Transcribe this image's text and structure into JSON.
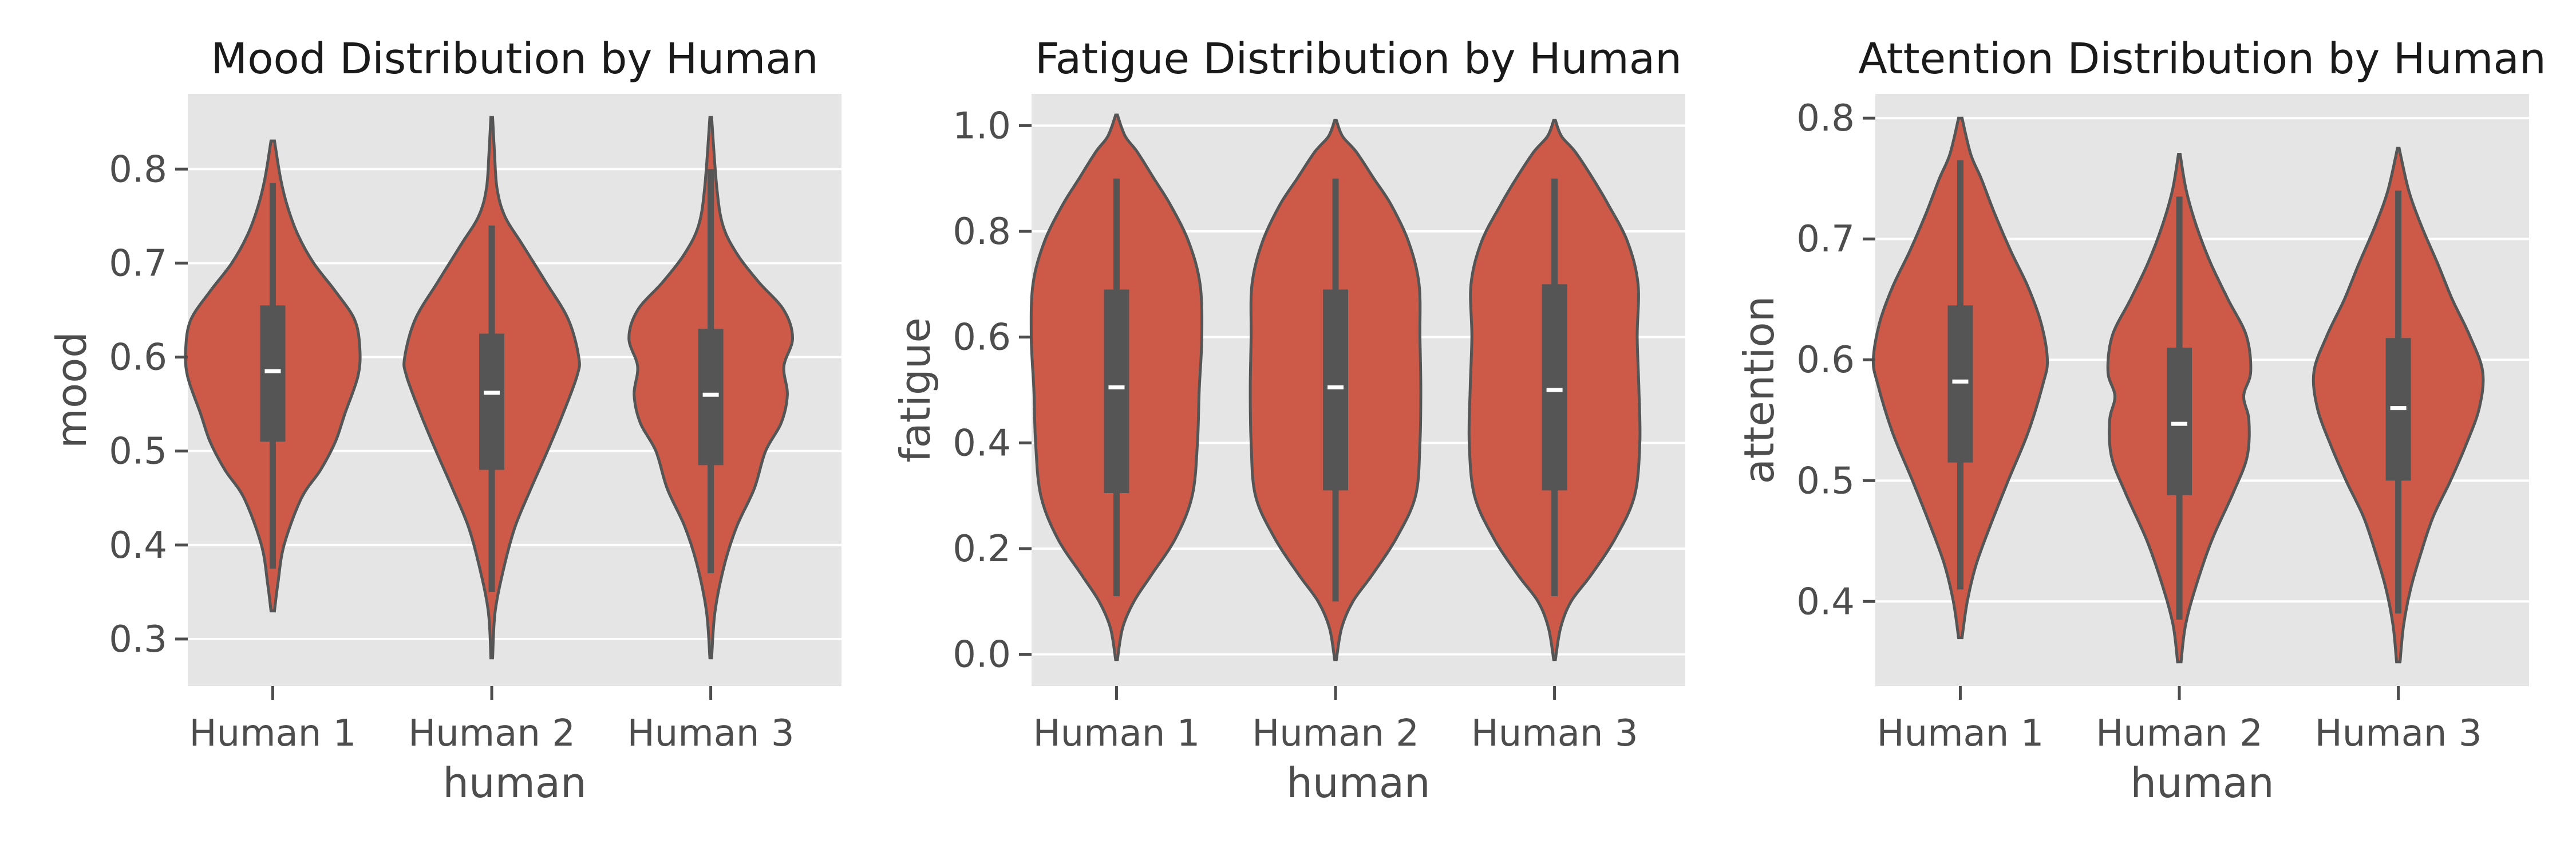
{
  "figure": {
    "background": "#ffffff",
    "panel_background": "#e5e5e5",
    "grid_color": "#ffffff",
    "violin_fill": "#cd5a48",
    "violin_stroke": "#555555",
    "box_color": "#555555",
    "median_color": "#ffffff"
  },
  "chart_data": [
    {
      "type": "violin",
      "title": "Mood Distribution by Human",
      "xlabel": "human",
      "ylabel": "mood",
      "ylim": [
        0.25,
        0.88
      ],
      "yticks": [
        0.3,
        0.4,
        0.5,
        0.6,
        0.7,
        0.8
      ],
      "ytick_labels": [
        "0.3",
        "0.4",
        "0.5",
        "0.6",
        "0.7",
        "0.8"
      ],
      "grid": true,
      "categories": [
        "Human 1",
        "Human 2",
        "Human 3"
      ],
      "groups": [
        {
          "min": 0.33,
          "max": 0.83,
          "whisker_low": 0.375,
          "q1": 0.51,
          "median": 0.585,
          "q3": 0.655,
          "whisker_high": 0.785,
          "density": [
            [
              0.33,
              0.02
            ],
            [
              0.36,
              0.06
            ],
            [
              0.4,
              0.13
            ],
            [
              0.45,
              0.33
            ],
            [
              0.48,
              0.55
            ],
            [
              0.51,
              0.72
            ],
            [
              0.54,
              0.83
            ],
            [
              0.58,
              0.98
            ],
            [
              0.61,
              1.0
            ],
            [
              0.64,
              0.94
            ],
            [
              0.67,
              0.72
            ],
            [
              0.7,
              0.47
            ],
            [
              0.73,
              0.29
            ],
            [
              0.76,
              0.17
            ],
            [
              0.79,
              0.09
            ],
            [
              0.83,
              0.02
            ]
          ]
        },
        {
          "min": 0.28,
          "max": 0.855,
          "whisker_low": 0.35,
          "q1": 0.48,
          "median": 0.562,
          "q3": 0.625,
          "whisker_high": 0.74,
          "density": [
            [
              0.28,
              0.01
            ],
            [
              0.33,
              0.04
            ],
            [
              0.38,
              0.15
            ],
            [
              0.42,
              0.27
            ],
            [
              0.46,
              0.45
            ],
            [
              0.5,
              0.64
            ],
            [
              0.54,
              0.82
            ],
            [
              0.58,
              0.98
            ],
            [
              0.6,
              1.0
            ],
            [
              0.64,
              0.88
            ],
            [
              0.68,
              0.62
            ],
            [
              0.72,
              0.35
            ],
            [
              0.75,
              0.15
            ],
            [
              0.78,
              0.06
            ],
            [
              0.82,
              0.03
            ],
            [
              0.855,
              0.01
            ]
          ]
        },
        {
          "min": 0.28,
          "max": 0.855,
          "whisker_low": 0.37,
          "q1": 0.485,
          "median": 0.56,
          "q3": 0.63,
          "whisker_high": 0.8,
          "density": [
            [
              0.28,
              0.01
            ],
            [
              0.33,
              0.05
            ],
            [
              0.38,
              0.16
            ],
            [
              0.42,
              0.3
            ],
            [
              0.46,
              0.5
            ],
            [
              0.5,
              0.63
            ],
            [
              0.53,
              0.81
            ],
            [
              0.56,
              0.88
            ],
            [
              0.59,
              0.84
            ],
            [
              0.62,
              0.94
            ],
            [
              0.65,
              0.84
            ],
            [
              0.68,
              0.55
            ],
            [
              0.71,
              0.3
            ],
            [
              0.74,
              0.14
            ],
            [
              0.78,
              0.07
            ],
            [
              0.855,
              0.01
            ]
          ]
        }
      ]
    },
    {
      "type": "violin",
      "title": "Fatigue Distribution by Human",
      "xlabel": "human",
      "ylabel": "fatigue",
      "ylim": [
        -0.06,
        1.06
      ],
      "yticks": [
        0.0,
        0.2,
        0.4,
        0.6,
        0.8,
        1.0
      ],
      "ytick_labels": [
        "0.0",
        "0.2",
        "0.4",
        "0.6",
        "0.8",
        "1.0"
      ],
      "grid": true,
      "categories": [
        "Human 1",
        "Human 2",
        "Human 3"
      ],
      "groups": [
        {
          "min": -0.01,
          "max": 1.02,
          "whisker_low": 0.11,
          "q1": 0.305,
          "median": 0.505,
          "q3": 0.69,
          "whisker_high": 0.9,
          "density": [
            [
              -0.01,
              0.01
            ],
            [
              0.05,
              0.07
            ],
            [
              0.1,
              0.2
            ],
            [
              0.15,
              0.4
            ],
            [
              0.22,
              0.68
            ],
            [
              0.3,
              0.87
            ],
            [
              0.4,
              0.93
            ],
            [
              0.5,
              0.95
            ],
            [
              0.6,
              0.98
            ],
            [
              0.7,
              0.96
            ],
            [
              0.78,
              0.83
            ],
            [
              0.85,
              0.62
            ],
            [
              0.9,
              0.43
            ],
            [
              0.95,
              0.24
            ],
            [
              0.98,
              0.1
            ],
            [
              1.02,
              0.01
            ]
          ]
        },
        {
          "min": -0.01,
          "max": 1.01,
          "whisker_low": 0.1,
          "q1": 0.31,
          "median": 0.505,
          "q3": 0.69,
          "whisker_high": 0.9,
          "density": [
            [
              -0.01,
              0.01
            ],
            [
              0.05,
              0.07
            ],
            [
              0.1,
              0.2
            ],
            [
              0.15,
              0.42
            ],
            [
              0.22,
              0.7
            ],
            [
              0.3,
              0.92
            ],
            [
              0.4,
              0.97
            ],
            [
              0.5,
              0.98
            ],
            [
              0.6,
              0.97
            ],
            [
              0.7,
              0.96
            ],
            [
              0.78,
              0.84
            ],
            [
              0.85,
              0.64
            ],
            [
              0.9,
              0.44
            ],
            [
              0.95,
              0.24
            ],
            [
              0.98,
              0.08
            ],
            [
              1.01,
              0.01
            ]
          ]
        },
        {
          "min": -0.01,
          "max": 1.01,
          "whisker_low": 0.11,
          "q1": 0.31,
          "median": 0.5,
          "q3": 0.7,
          "whisker_high": 0.9,
          "density": [
            [
              -0.01,
              0.01
            ],
            [
              0.05,
              0.07
            ],
            [
              0.1,
              0.19
            ],
            [
              0.15,
              0.42
            ],
            [
              0.22,
              0.7
            ],
            [
              0.3,
              0.92
            ],
            [
              0.4,
              0.98
            ],
            [
              0.5,
              0.97
            ],
            [
              0.6,
              0.95
            ],
            [
              0.7,
              0.96
            ],
            [
              0.78,
              0.84
            ],
            [
              0.85,
              0.62
            ],
            [
              0.9,
              0.44
            ],
            [
              0.95,
              0.24
            ],
            [
              0.98,
              0.08
            ],
            [
              1.01,
              0.01
            ]
          ]
        }
      ]
    },
    {
      "type": "violin",
      "title": "Attention Distribution by Human",
      "xlabel": "human",
      "ylabel": "attention",
      "ylim": [
        0.33,
        0.82
      ],
      "yticks": [
        0.4,
        0.5,
        0.6,
        0.7,
        0.8
      ],
      "ytick_labels": [
        "0.4",
        "0.5",
        "0.6",
        "0.7",
        "0.8"
      ],
      "grid": true,
      "categories": [
        "Human 1",
        "Human 2",
        "Human 3"
      ],
      "groups": [
        {
          "min": 0.37,
          "max": 0.8,
          "whisker_low": 0.41,
          "q1": 0.515,
          "median": 0.582,
          "q3": 0.645,
          "whisker_high": 0.765,
          "density": [
            [
              0.37,
              0.02
            ],
            [
              0.4,
              0.08
            ],
            [
              0.43,
              0.18
            ],
            [
              0.46,
              0.33
            ],
            [
              0.5,
              0.55
            ],
            [
              0.54,
              0.78
            ],
            [
              0.58,
              0.95
            ],
            [
              0.6,
              1.0
            ],
            [
              0.63,
              0.93
            ],
            [
              0.66,
              0.78
            ],
            [
              0.69,
              0.58
            ],
            [
              0.72,
              0.4
            ],
            [
              0.75,
              0.24
            ],
            [
              0.77,
              0.12
            ],
            [
              0.8,
              0.02
            ]
          ]
        },
        {
          "min": 0.35,
          "max": 0.77,
          "whisker_low": 0.385,
          "q1": 0.488,
          "median": 0.547,
          "q3": 0.61,
          "whisker_high": 0.735,
          "density": [
            [
              0.35,
              0.02
            ],
            [
              0.38,
              0.07
            ],
            [
              0.41,
              0.18
            ],
            [
              0.45,
              0.37
            ],
            [
              0.49,
              0.62
            ],
            [
              0.52,
              0.78
            ],
            [
              0.55,
              0.8
            ],
            [
              0.57,
              0.74
            ],
            [
              0.59,
              0.82
            ],
            [
              0.62,
              0.77
            ],
            [
              0.65,
              0.56
            ],
            [
              0.68,
              0.36
            ],
            [
              0.71,
              0.2
            ],
            [
              0.74,
              0.08
            ],
            [
              0.77,
              0.01
            ]
          ]
        },
        {
          "min": 0.35,
          "max": 0.775,
          "whisker_low": 0.39,
          "q1": 0.5,
          "median": 0.56,
          "q3": 0.618,
          "whisker_high": 0.74,
          "density": [
            [
              0.35,
              0.02
            ],
            [
              0.38,
              0.06
            ],
            [
              0.41,
              0.14
            ],
            [
              0.44,
              0.26
            ],
            [
              0.47,
              0.4
            ],
            [
              0.5,
              0.6
            ],
            [
              0.53,
              0.78
            ],
            [
              0.56,
              0.93
            ],
            [
              0.59,
              0.97
            ],
            [
              0.62,
              0.82
            ],
            [
              0.65,
              0.62
            ],
            [
              0.68,
              0.45
            ],
            [
              0.71,
              0.27
            ],
            [
              0.74,
              0.12
            ],
            [
              0.775,
              0.01
            ]
          ]
        }
      ]
    }
  ]
}
